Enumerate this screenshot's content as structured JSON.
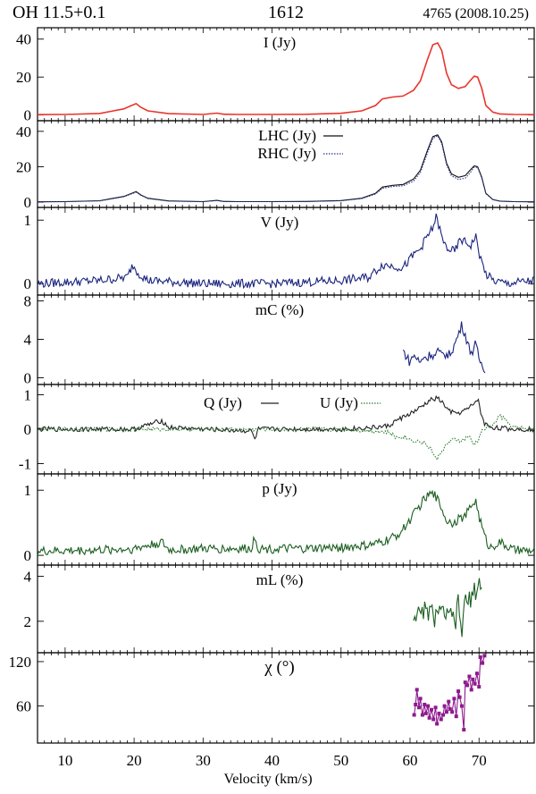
{
  "header": {
    "source": "OH 11.5+0.1",
    "transition": "1612",
    "epoch": "4765 (2008.10.25)"
  },
  "xaxis": {
    "label": "Velocity (km/s)",
    "range": [
      6,
      78
    ],
    "ticks": [
      10,
      20,
      30,
      40,
      50,
      60,
      70
    ]
  },
  "colors": {
    "I": "#e8352c",
    "LHC": "#111111",
    "RHC": "#283593",
    "V": "#1a237e",
    "mC": "#1a237e",
    "Q": "#222222",
    "U": "#2e7d32",
    "p": "#1b5e20",
    "mL": "#1b5e20",
    "chi": "#8e1a8e"
  },
  "chart_data": [
    {
      "type": "line",
      "panel": "I",
      "title": "I (Jy)",
      "ylim": [
        -3,
        46
      ],
      "yticks": [
        0,
        20,
        40
      ],
      "series": [
        {
          "key": "I",
          "x": [
            6,
            10,
            15,
            17,
            18.5,
            19.5,
            20.3,
            21,
            22,
            25,
            30,
            32,
            33,
            35,
            40,
            45,
            50,
            53,
            55,
            56,
            57.5,
            59,
            60.5,
            61.5,
            62.5,
            63.3,
            64,
            64.6,
            65.3,
            66,
            67,
            68,
            68.7,
            69.3,
            69.8,
            70.4,
            71,
            72,
            73,
            75,
            78
          ],
          "y": [
            0.2,
            0.3,
            0.8,
            2.2,
            3.2,
            4.8,
            6.0,
            4.0,
            2.2,
            0.7,
            0.3,
            1.0,
            0.4,
            0.3,
            0.3,
            0.4,
            0.9,
            2.2,
            5.0,
            8.5,
            9.5,
            10.0,
            13.0,
            18.0,
            29.0,
            37.0,
            38.0,
            34.0,
            22.0,
            16.0,
            14.0,
            15.0,
            18.0,
            20.5,
            20.0,
            14.0,
            5.0,
            1.5,
            0.6,
            0.3,
            0.2
          ]
        }
      ]
    },
    {
      "type": "line",
      "panel": "LHC_RHC",
      "ylim": [
        -3,
        46
      ],
      "yticks": [
        0,
        20,
        40
      ],
      "legend": [
        "LHC (Jy)",
        "RHC (Jy)"
      ],
      "series": [
        {
          "name": "LHC (Jy)",
          "key": "LHC",
          "x": [
            6,
            10,
            15,
            17,
            18.5,
            19.5,
            20.3,
            21,
            22,
            25,
            30,
            32,
            33,
            35,
            40,
            45,
            50,
            53,
            55,
            56,
            57.5,
            59,
            60.5,
            61.5,
            62.5,
            63.3,
            64,
            64.6,
            65.3,
            66,
            67,
            68,
            68.7,
            69.3,
            69.8,
            70.4,
            71,
            72,
            73,
            75,
            78
          ],
          "y": [
            0.2,
            0.3,
            0.8,
            2.2,
            3.2,
            4.8,
            6.0,
            4.0,
            2.2,
            0.7,
            0.3,
            1.0,
            0.4,
            0.3,
            0.3,
            0.4,
            0.9,
            2.2,
            5.0,
            8.5,
            9.5,
            10.0,
            13.0,
            18.0,
            29.0,
            37.0,
            38.0,
            34.0,
            22.0,
            16.0,
            14.0,
            15.0,
            18.0,
            20.5,
            20.0,
            14.0,
            5.0,
            1.5,
            0.6,
            0.3,
            0.2
          ]
        },
        {
          "name": "RHC (Jy)",
          "key": "RHC",
          "x": [
            6,
            10,
            15,
            17,
            18.5,
            19.5,
            20.3,
            21,
            22,
            25,
            30,
            32,
            33,
            35,
            40,
            45,
            50,
            53,
            55,
            56,
            57.5,
            59,
            60.5,
            61.5,
            62.5,
            63.3,
            64,
            64.6,
            65.3,
            66,
            67,
            68,
            68.7,
            69.3,
            69.8,
            70.4,
            71,
            72,
            73,
            75,
            78
          ],
          "y": [
            0.2,
            0.3,
            0.7,
            2.0,
            3.0,
            4.5,
            5.6,
            3.8,
            2.0,
            0.6,
            0.3,
            0.9,
            0.4,
            0.3,
            0.3,
            0.4,
            0.8,
            2.0,
            4.6,
            7.8,
            8.8,
            9.2,
            11.8,
            16.8,
            27.5,
            36.0,
            37.5,
            33.0,
            21.0,
            15.0,
            12.8,
            13.5,
            16.5,
            19.8,
            19.6,
            13.5,
            4.8,
            1.4,
            0.6,
            0.3,
            0.2
          ]
        }
      ]
    },
    {
      "type": "line",
      "panel": "V",
      "title": "V (Jy)",
      "ylim": [
        -0.18,
        1.2
      ],
      "yticks": [
        0,
        1
      ],
      "series": [
        {
          "key": "V",
          "x": [
            6,
            15,
            19,
            19.8,
            20.5,
            22,
            30,
            40,
            50,
            54,
            56,
            57.5,
            59,
            60.5,
            61.5,
            62.5,
            63.2,
            63.8,
            64.2,
            64.8,
            65.5,
            66.5,
            67.3,
            68,
            68.8,
            69.5,
            70.2,
            71,
            72,
            74,
            78
          ],
          "y": [
            0.0,
            0.05,
            0.1,
            0.3,
            0.18,
            0.05,
            0.0,
            0.0,
            0.05,
            0.1,
            0.3,
            0.28,
            0.25,
            0.45,
            0.55,
            0.75,
            0.85,
            1.05,
            0.9,
            0.65,
            0.55,
            0.5,
            0.7,
            0.65,
            0.6,
            0.75,
            0.4,
            0.15,
            0.05,
            0.0,
            0.05
          ],
          "noise": 0.07
        }
      ]
    },
    {
      "type": "line",
      "panel": "mC",
      "title": "mC (%)",
      "ylim": [
        -0.7,
        8.6
      ],
      "yticks": [
        0,
        4,
        8
      ],
      "series": [
        {
          "key": "mC",
          "x": [
            59,
            59.5,
            60,
            60.5,
            61,
            61.5,
            62,
            62.5,
            63,
            63.5,
            64,
            64.5,
            65,
            65.5,
            66,
            66.5,
            67,
            67.5,
            68,
            68.5,
            69,
            69.5,
            70,
            70.5,
            71
          ],
          "y": [
            2.8,
            2.2,
            1.6,
            2.4,
            2.0,
            1.5,
            2.3,
            2.0,
            2.6,
            2.2,
            2.8,
            2.3,
            2.6,
            2.2,
            2.8,
            3.5,
            4.5,
            5.5,
            4.5,
            3.2,
            2.6,
            3.5,
            2.0,
            1.2,
            0.9
          ],
          "noise": 0.5
        }
      ]
    },
    {
      "type": "line",
      "panel": "QU",
      "ylim": [
        -1.3,
        1.3
      ],
      "yticks": [
        -1,
        0,
        1
      ],
      "legend": [
        "Q (Jy)",
        "U (Jy)"
      ],
      "series": [
        {
          "name": "Q (Jy)",
          "key": "Q",
          "x": [
            6,
            20,
            24,
            25,
            30,
            37,
            37.5,
            38,
            45,
            50,
            55,
            57,
            58,
            59,
            60,
            61,
            62,
            63,
            64,
            64.8,
            65.5,
            66.5,
            67.5,
            68.5,
            69.3,
            69.8,
            70.3,
            70.8,
            72,
            75,
            78
          ],
          "y": [
            0.0,
            0.0,
            0.25,
            0.05,
            0.0,
            -0.05,
            -0.3,
            0.0,
            0.0,
            0.0,
            0.05,
            0.1,
            0.25,
            0.35,
            0.45,
            0.55,
            0.7,
            0.85,
            0.9,
            0.75,
            0.55,
            0.45,
            0.5,
            0.6,
            0.75,
            0.9,
            0.45,
            0.15,
            0.05,
            0.0,
            0.0
          ],
          "noise": 0.07
        },
        {
          "name": "U (Jy)",
          "key": "U",
          "x": [
            6,
            30,
            50,
            55,
            57,
            58,
            59,
            60,
            61,
            62,
            63,
            63.8,
            64.5,
            65.5,
            66.5,
            67.5,
            68.5,
            69.2,
            69.8,
            70.3,
            71,
            72,
            73,
            75,
            78
          ],
          "y": [
            0.0,
            0.0,
            0.0,
            -0.05,
            -0.1,
            -0.25,
            -0.2,
            -0.3,
            -0.35,
            -0.4,
            -0.55,
            -0.9,
            -0.65,
            -0.4,
            -0.3,
            -0.35,
            -0.2,
            -0.45,
            -0.35,
            -0.1,
            0.05,
            0.1,
            0.4,
            0.05,
            0.0
          ],
          "noise": 0.06
        }
      ]
    },
    {
      "type": "line",
      "panel": "p",
      "title": "p (Jy)",
      "ylim": [
        -0.15,
        1.25
      ],
      "yticks": [
        0,
        1
      ],
      "series": [
        {
          "key": "p",
          "x": [
            6,
            15,
            20,
            24,
            25,
            30,
            37,
            37.5,
            38,
            45,
            50,
            54,
            56,
            58,
            59,
            60,
            61,
            62,
            63,
            63.8,
            64.5,
            65.2,
            66,
            67,
            68,
            68.8,
            69.5,
            70,
            70.8,
            71.5,
            73,
            75,
            78
          ],
          "y": [
            0.06,
            0.08,
            0.1,
            0.2,
            0.08,
            0.1,
            0.1,
            0.3,
            0.1,
            0.1,
            0.12,
            0.15,
            0.2,
            0.3,
            0.4,
            0.55,
            0.7,
            0.85,
            0.95,
            0.9,
            0.75,
            0.55,
            0.5,
            0.55,
            0.6,
            0.75,
            0.85,
            0.6,
            0.3,
            0.12,
            0.2,
            0.08,
            0.06
          ],
          "noise": 0.07
        }
      ]
    },
    {
      "type": "line",
      "panel": "mL",
      "title": "mL (%)",
      "ylim": [
        0.6,
        4.5
      ],
      "yticks": [
        2,
        4
      ],
      "series": [
        {
          "key": "mL",
          "x": [
            60.5,
            61,
            61.5,
            62,
            62.5,
            63,
            63.5,
            64,
            64.5,
            65,
            65.5,
            66,
            66.5,
            67,
            67.5,
            68,
            68.5,
            69,
            69.5,
            70,
            70.5
          ],
          "y": [
            2.2,
            2.5,
            2.0,
            2.6,
            2.3,
            2.5,
            2.1,
            2.6,
            2.2,
            2.5,
            2.0,
            2.4,
            1.8,
            2.8,
            1.5,
            3.0,
            2.8,
            3.2,
            3.4,
            3.6,
            3.8
          ],
          "noise": 0.45
        }
      ]
    },
    {
      "type": "scatter",
      "panel": "chi",
      "title": "χ (°)",
      "ylim": [
        10,
        132
      ],
      "yticks": [
        60,
        120
      ],
      "series": [
        {
          "key": "chi",
          "x": [
            60.6,
            60.8,
            61.0,
            61.3,
            61.5,
            61.8,
            62.1,
            62.3,
            62.6,
            62.8,
            63.1,
            63.4,
            63.7,
            63.9,
            64.2,
            64.5,
            64.8,
            65.0,
            65.3,
            65.6,
            65.8,
            66.1,
            66.4,
            66.7,
            67.0,
            67.2,
            67.5,
            67.8,
            68.0,
            68.3,
            68.6,
            68.9,
            69.1,
            69.4,
            69.7,
            70.0,
            70.2,
            70.5,
            70.8
          ],
          "y": [
            48,
            62,
            82,
            58,
            70,
            48,
            62,
            50,
            60,
            44,
            55,
            42,
            58,
            36,
            50,
            42,
            48,
            60,
            52,
            66,
            56,
            52,
            70,
            46,
            80,
            72,
            60,
            28,
            92,
            88,
            100,
            82,
            96,
            90,
            104,
            86,
            126,
            118,
            128
          ]
        }
      ]
    }
  ]
}
